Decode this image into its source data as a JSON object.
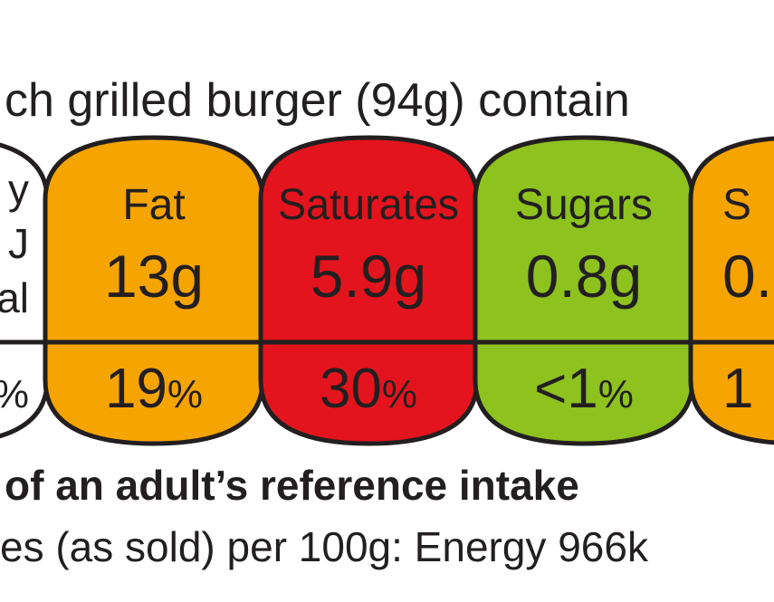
{
  "header": {
    "text": "ch grilled burger (94g) contain"
  },
  "columns": [
    {
      "lines": [
        "y",
        "J",
        "al"
      ],
      "percent": {
        "unit": "%"
      }
    },
    {
      "lines": [
        "Fat",
        "13g"
      ],
      "percent": {
        "number": "19",
        "unit": "%"
      }
    },
    {
      "lines": [
        "Saturates",
        "5.9g"
      ],
      "percent": {
        "number": "30",
        "unit": "%"
      }
    },
    {
      "lines": [
        "Sugars",
        "0.8g"
      ],
      "percent": {
        "number": "<1",
        "unit": "%"
      }
    },
    {
      "lines": [
        "S",
        "0."
      ],
      "percent": {
        "number": "1"
      }
    }
  ],
  "footer": {
    "bold": "of an adult’s reference intake",
    "text": "es (as sold) per 100g: Energy 966k"
  }
}
